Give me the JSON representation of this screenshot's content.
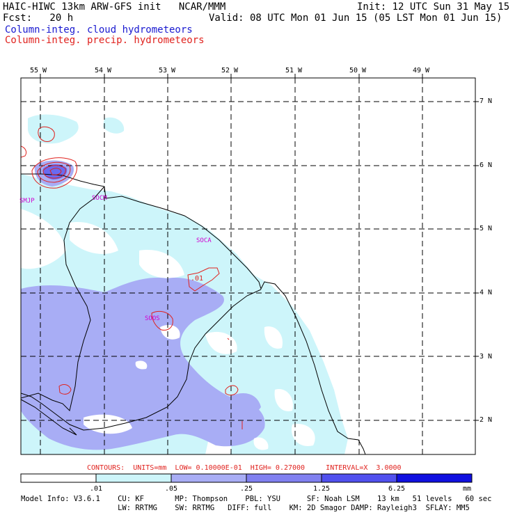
{
  "header": {
    "title_left": "HAIC-HIWC 13km ARW-GFS init   NCAR/MMM",
    "init": "Init: 12 UTC Sun 31 May 15",
    "fcst": "Fcst:   20 h",
    "valid": "Valid: 08 UTC Mon 01 Jun 15 (05 LST Mon 01 Jun 15)",
    "field1": "Column-integ. cloud hydrometeors",
    "field2": "Column-integ. precip. hydrometeors"
  },
  "map": {
    "lon_labels": [
      "55 W",
      "54 W",
      "53 W",
      "52 W",
      "51 W",
      "50 W",
      "49 W"
    ],
    "lat_labels": [
      "7 N",
      "6 N",
      "5 N",
      "4 N",
      "3 N",
      "2 N"
    ],
    "stations": [
      "SMJP",
      "SOCM",
      "SOCA",
      "SOOS"
    ],
    "contour_label": ".01",
    "colors": {
      "cloud_light": "#cdf5fa",
      "cloud_mid": "#a8adf5",
      "cloud_dark": "#6a6af0",
      "precip_contour": "#e0221e",
      "station": "#d000d0"
    }
  },
  "contours_line": "CONTOURS:  UNITS=mm  LOW= 0.10000E-01  HIGH= 0.27000     INTERVAL=X  3.0000",
  "colorbar": {
    "ticks": [
      ".01",
      ".05",
      ".25",
      "1.25",
      "6.25"
    ],
    "units": "mm",
    "colors": [
      "#ffffff",
      "#cdf5fa",
      "#a8adf5",
      "#8080f0",
      "#5050ee",
      "#3030e8",
      "#1010e0"
    ]
  },
  "model_info": {
    "line1": "Model Info: V3.6.1    CU: KF       MP: Thompson    PBL: YSU      SF: Noah LSM    13 km   51 levels   60 sec",
    "line2": "                      LW: RRTMG    SW: RRTMG   DIFF: full    KM: 2D Smagor DAMP: Rayleigh3  SFLAY: MM5"
  }
}
